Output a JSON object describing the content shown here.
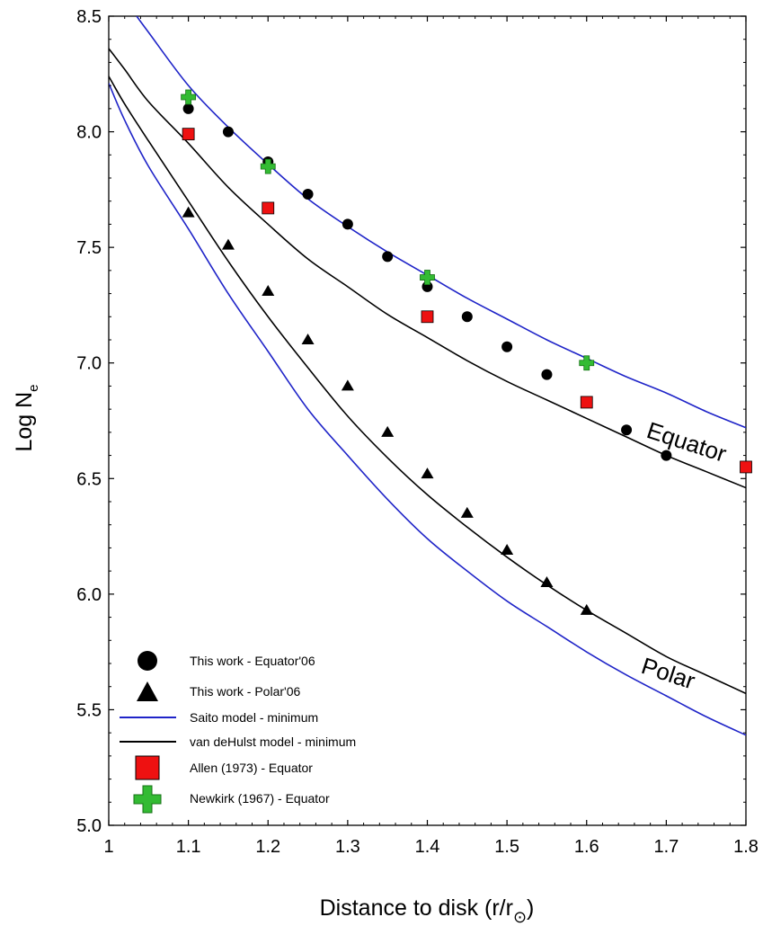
{
  "chart_data": {
    "type": "scatter",
    "xlabel": "Distance to disk (r/r⊙)",
    "xlabel_main": "Distance to disk (r/r",
    "xlabel_sub": "⊙",
    "xlabel_close": ")",
    "ylabel": "Log Ne",
    "ylabel_main": "Log N",
    "ylabel_sub": "e",
    "xlim": [
      1.0,
      1.8
    ],
    "ylim": [
      5.0,
      8.5
    ],
    "x_ticks": [
      1.0,
      1.1,
      1.2,
      1.3,
      1.4,
      1.5,
      1.6,
      1.7,
      1.8
    ],
    "x_tick_labels": [
      "1",
      "1.1",
      "1.2",
      "1.3",
      "1.4",
      "1.5",
      "1.6",
      "1.7",
      "1.8"
    ],
    "y_ticks": [
      5.0,
      5.5,
      6.0,
      6.5,
      7.0,
      7.5,
      8.0,
      8.5
    ],
    "y_tick_labels": [
      "5.0",
      "5.5",
      "6.0",
      "6.5",
      "7.0",
      "7.5",
      "8.0",
      "8.5"
    ],
    "grid": false,
    "legend_position": "bottom-left",
    "colors": {
      "saito": "#1f24c8",
      "vandehulst": "#000000",
      "allen": "#ee1111",
      "newkirk": "#33bb33",
      "marker": "#000000"
    },
    "annotations": [
      {
        "text": "Equator",
        "x": 1.675,
        "y": 6.73,
        "rotation": 18
      },
      {
        "text": "Polar",
        "x": 1.625,
        "y": 5.62,
        "rotation": 18
      }
    ],
    "series": [
      {
        "name": "This work - Equator'06",
        "kind": "circle",
        "x": [
          1.1,
          1.15,
          1.2,
          1.25,
          1.3,
          1.35,
          1.4,
          1.45,
          1.5,
          1.55,
          1.6,
          1.65,
          1.7
        ],
        "y": [
          8.1,
          8.0,
          7.87,
          7.73,
          7.6,
          7.46,
          7.33,
          7.2,
          7.07,
          6.95,
          6.83,
          6.71,
          6.6
        ]
      },
      {
        "name": "This work - Polar'06",
        "kind": "triangle",
        "x": [
          1.1,
          1.15,
          1.2,
          1.25,
          1.3,
          1.35,
          1.4,
          1.45,
          1.5,
          1.55,
          1.6
        ],
        "y": [
          7.65,
          7.51,
          7.31,
          7.1,
          6.9,
          6.7,
          6.52,
          6.35,
          6.19,
          6.05,
          5.93
        ]
      },
      {
        "name": "Saito model - minimum",
        "kind": "line",
        "color": "#1f24c8",
        "curves": [
          {
            "x": [
              1.035,
              1.05,
              1.1,
              1.15,
              1.2,
              1.25,
              1.3,
              1.35,
              1.4,
              1.45,
              1.5,
              1.55,
              1.6,
              1.65,
              1.7,
              1.75,
              1.8
            ],
            "y": [
              8.5,
              8.43,
              8.2,
              8.02,
              7.86,
              7.71,
              7.59,
              7.48,
              7.38,
              7.28,
              7.19,
              7.1,
              7.02,
              6.94,
              6.87,
              6.79,
              6.72
            ]
          },
          {
            "x": [
              1.0,
              1.02,
              1.05,
              1.1,
              1.15,
              1.2,
              1.25,
              1.3,
              1.35,
              1.4,
              1.45,
              1.5,
              1.55,
              1.6,
              1.65,
              1.7,
              1.75,
              1.8
            ],
            "y": [
              8.21,
              8.05,
              7.85,
              7.58,
              7.3,
              7.05,
              6.8,
              6.6,
              6.41,
              6.24,
              6.1,
              5.97,
              5.86,
              5.75,
              5.65,
              5.56,
              5.47,
              5.39
            ]
          }
        ]
      },
      {
        "name": "van deHulst model - minimum",
        "kind": "line",
        "color": "#000000",
        "curves": [
          {
            "x": [
              1.0,
              1.02,
              1.05,
              1.1,
              1.15,
              1.2,
              1.25,
              1.3,
              1.35,
              1.4,
              1.45,
              1.5,
              1.55,
              1.6,
              1.65,
              1.7,
              1.75,
              1.8
            ],
            "y": [
              8.36,
              8.27,
              8.13,
              7.95,
              7.76,
              7.6,
              7.45,
              7.33,
              7.21,
              7.11,
              7.01,
              6.92,
              6.84,
              6.76,
              6.68,
              6.6,
              6.53,
              6.46
            ]
          },
          {
            "x": [
              1.0,
              1.02,
              1.05,
              1.1,
              1.15,
              1.2,
              1.25,
              1.3,
              1.35,
              1.4,
              1.45,
              1.5,
              1.55,
              1.6,
              1.65,
              1.7,
              1.75,
              1.8
            ],
            "y": [
              8.24,
              8.12,
              7.96,
              7.7,
              7.44,
              7.2,
              6.98,
              6.77,
              6.59,
              6.43,
              6.29,
              6.16,
              6.04,
              5.93,
              5.83,
              5.73,
              5.65,
              5.57
            ]
          }
        ]
      },
      {
        "name": "Allen (1973) - Equator",
        "kind": "square",
        "x": [
          1.1,
          1.2,
          1.4,
          1.6,
          1.8
        ],
        "y": [
          7.99,
          7.67,
          7.2,
          6.83,
          6.55
        ]
      },
      {
        "name": "Newkirk (1967) - Equator",
        "kind": "plus",
        "x": [
          1.1,
          1.2,
          1.4,
          1.6
        ],
        "y": [
          8.15,
          7.85,
          7.37,
          7.0
        ]
      }
    ]
  }
}
